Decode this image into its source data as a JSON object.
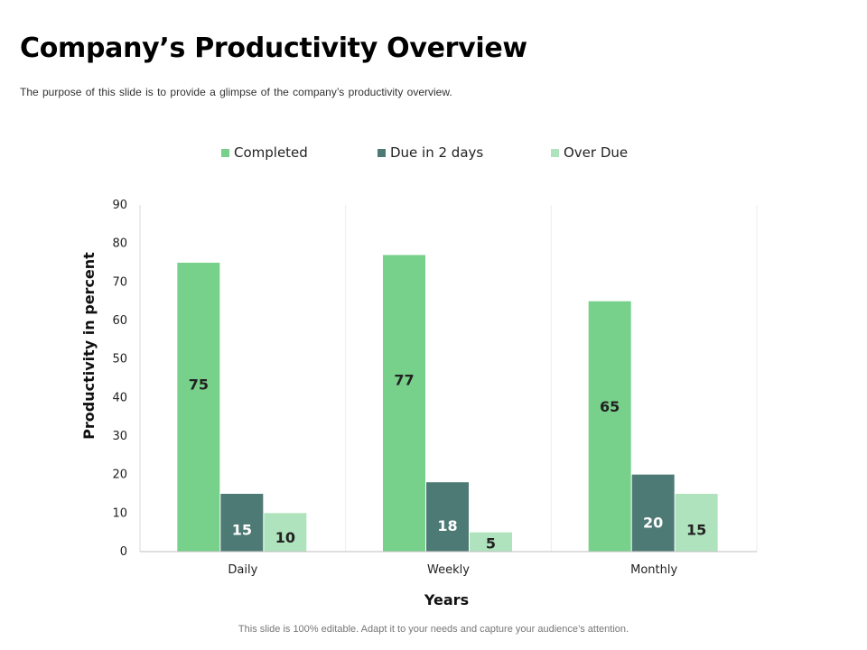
{
  "page": {
    "title": "Company’s Productivity Overview",
    "subtitle": "The purpose of this slide is to provide  a glimpse of the company’s productivity  overview.",
    "footer": "This slide is 100% editable. Adapt it to your needs and capture your audience’s attention."
  },
  "chart_data": {
    "type": "bar",
    "categories": [
      "Daily",
      "Weekly",
      "Monthly"
    ],
    "series": [
      {
        "name": "Completed",
        "values": [
          75,
          77,
          65
        ],
        "color": "#78d18b"
      },
      {
        "name": "Due in 2 days",
        "values": [
          15,
          18,
          20
        ],
        "color": "#4e7a76"
      },
      {
        "name": "Over Due",
        "values": [
          10,
          5,
          15
        ],
        "color": "#afe3bd"
      }
    ],
    "xlabel": "Years",
    "ylabel": "Productivity in percent",
    "ylim": [
      0,
      90
    ],
    "yticks": [
      0,
      10,
      20,
      30,
      40,
      50,
      60,
      70,
      80,
      90
    ],
    "legend_position": "top",
    "grid": false
  }
}
